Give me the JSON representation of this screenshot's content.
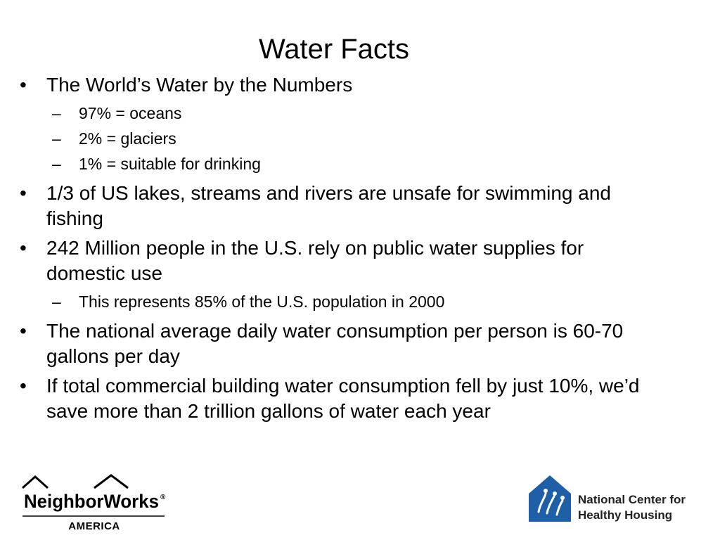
{
  "title": "Water Facts",
  "bullets": [
    {
      "text": "The World’s Water by the Numbers",
      "sub": [
        "97% = oceans",
        "2% = glaciers",
        "1% = suitable for drinking"
      ]
    },
    {
      "text": "1/3 of US lakes, streams and rivers are unsafe for swimming and fishing",
      "sub": []
    },
    {
      "text": "242 Million people in the U.S. rely on public water supplies for domestic use",
      "sub": [
        "This represents 85% of the U.S. population in 2000"
      ]
    },
    {
      "text": "The national average daily water consumption per person is 60-70 gallons per day",
      "sub": []
    },
    {
      "text": "If total commercial building water consumption fell by just 10%, we’d save more than 2 trillion gallons of water each year",
      "sub": []
    }
  ],
  "logos": {
    "neighborworks": {
      "name": "NeighborWorks",
      "registered": "®",
      "sub": "AMERICA"
    },
    "nchh": {
      "line1": "National Center for",
      "line2": "Healthy Housing",
      "color": "#1f5fa8"
    }
  }
}
